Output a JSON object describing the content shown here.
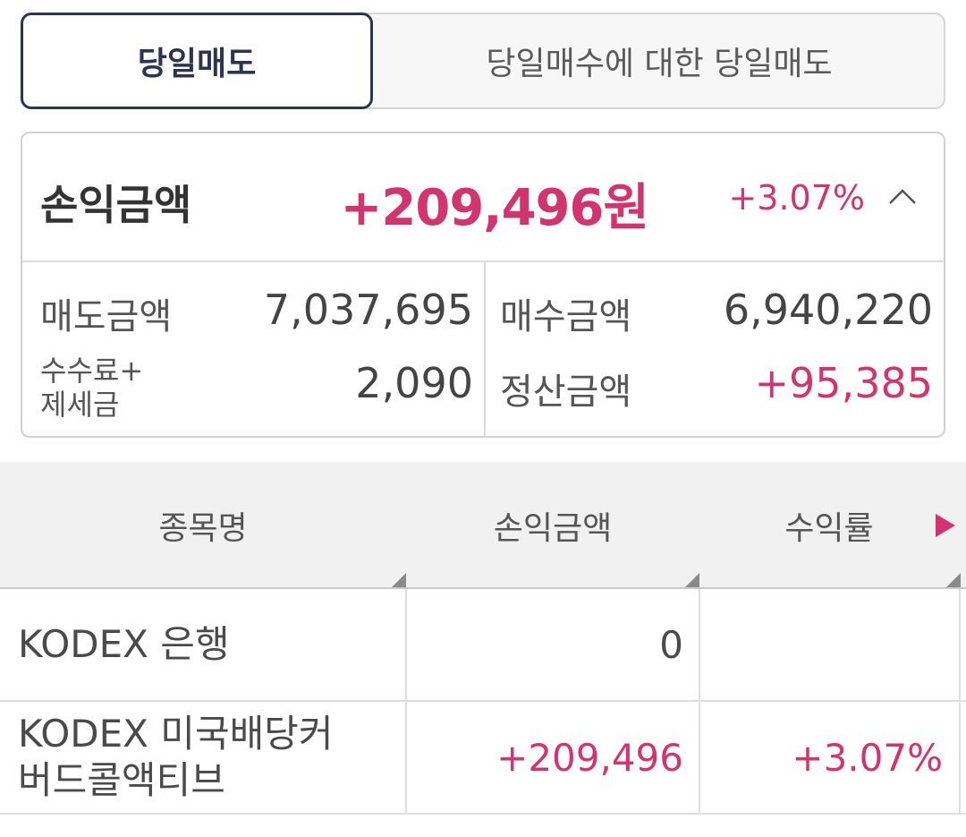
{
  "tabs": [
    {
      "label": "당일매도",
      "active": true
    },
    {
      "label": "당일매수에 대한 당일매도",
      "active": false
    }
  ],
  "summary": {
    "pl_label": "손익금액",
    "pl_amount": "+209,496원",
    "pl_rate": "+3.07%",
    "sell_label": "매도금액",
    "sell_value": "7,037,695",
    "buy_label": "매수금액",
    "buy_value": "6,940,220",
    "fee_label_line1": "수수료+",
    "fee_label_line2": "제세금",
    "fee_value": "2,090",
    "settle_label": "정산금액",
    "settle_value": "+95,385"
  },
  "table": {
    "headers": [
      "종목명",
      "손익금액",
      "수익률"
    ],
    "rows": [
      {
        "name_line1": "KODEX 은행",
        "name_line2": "",
        "pl": "0",
        "rate": ""
      },
      {
        "name_line1": "KODEX 미국배당커",
        "name_line2": "버드콜액티브",
        "pl": "+209,496",
        "rate": "+3.07%"
      }
    ]
  },
  "colors": {
    "accent_red": "#d3336e",
    "tab_active_border": "#2f3352"
  },
  "icons": {
    "collapse": "chevron-up-icon",
    "scroll": "scroll-right-icon"
  }
}
